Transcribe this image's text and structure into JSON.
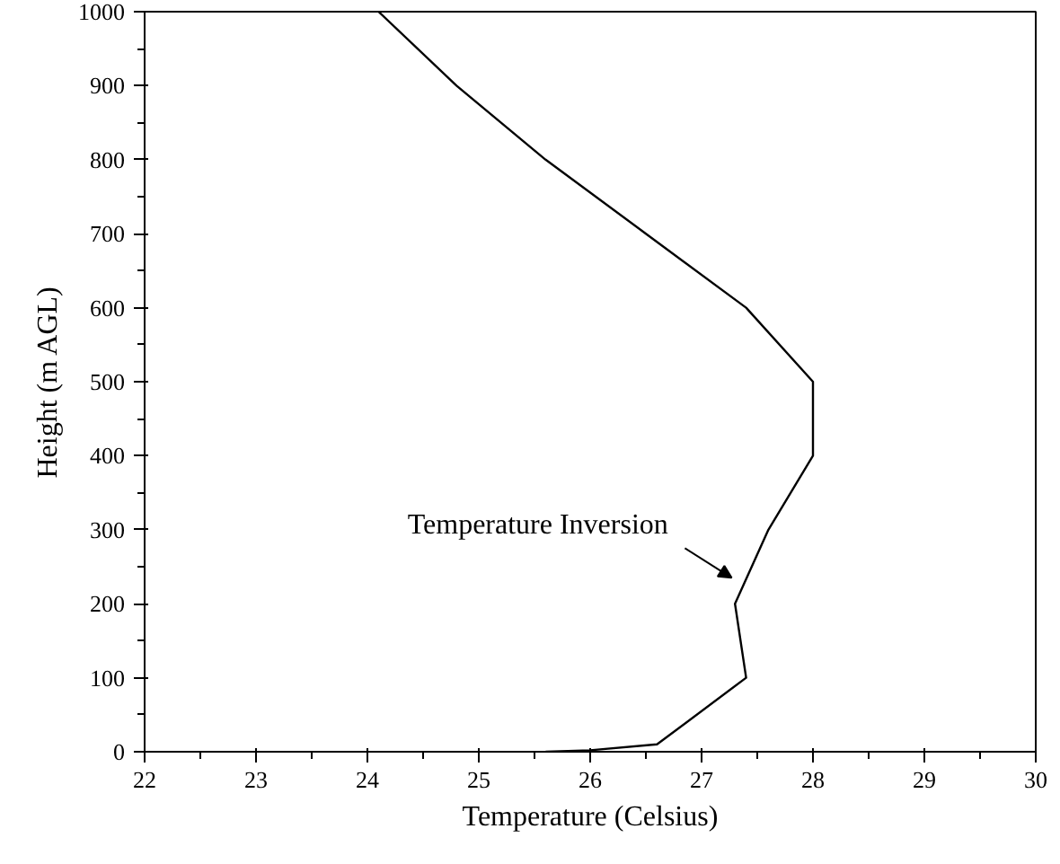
{
  "chart_data": {
    "type": "line",
    "xlabel": "Temperature (Celsius)",
    "ylabel": "Height (m AGL)",
    "x": [
      25.6,
      26.0,
      26.6,
      27.4,
      27.3,
      27.6,
      28.0,
      28.0,
      27.4,
      26.5,
      25.6,
      24.8,
      24.1
    ],
    "series": [
      {
        "color": "#000000",
        "values": [
          0,
          2,
          10,
          100,
          200,
          300,
          400,
          500,
          600,
          700,
          800,
          900,
          1000
        ]
      }
    ],
    "xlim": [
      22,
      30
    ],
    "xticks": [
      22,
      23,
      24,
      25,
      26,
      27,
      28,
      29,
      30
    ],
    "ylim": [
      0,
      1000
    ],
    "yticks": [
      0,
      100,
      200,
      300,
      400,
      500,
      600,
      700,
      800,
      900,
      1000
    ],
    "annotations": [
      {
        "text": "Temperature Inversion",
        "x": 27.3,
        "y": 230
      }
    ],
    "grid": false,
    "marker": "none",
    "line_style": "solid"
  }
}
